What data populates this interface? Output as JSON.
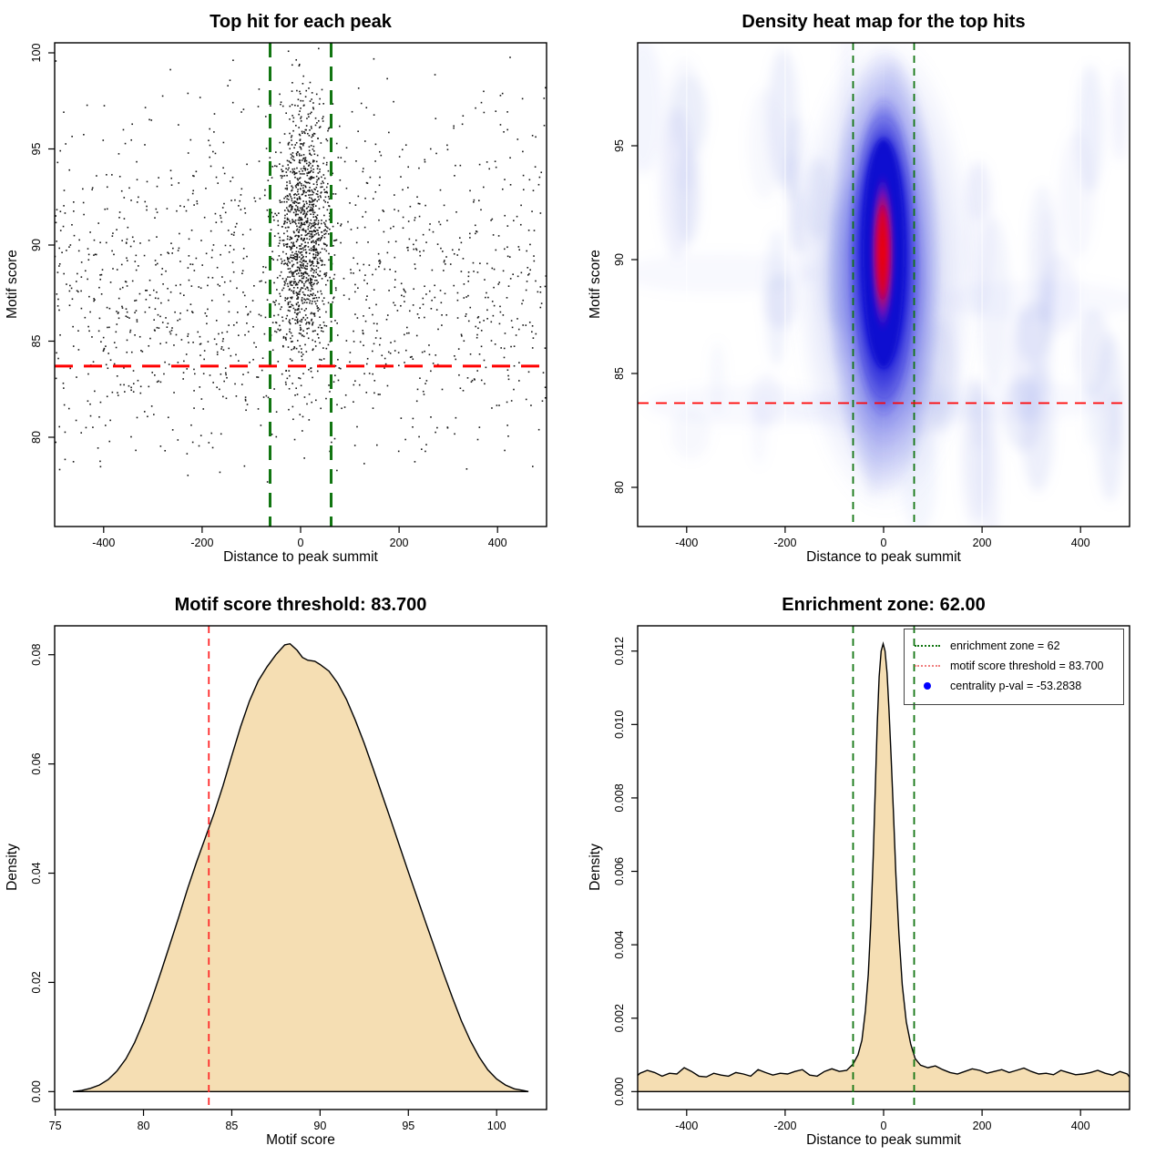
{
  "page": {
    "background": "#ffffff"
  },
  "chart_data": [
    {
      "id": "top-hit-scatter",
      "type": "scatter",
      "title": "Top hit for each peak",
      "xlabel": "Distance to peak summit",
      "ylabel": "Motif score",
      "x_ticks": [
        -400,
        -200,
        0,
        200,
        400
      ],
      "x_tick_labels": [
        "-400",
        "-200",
        "0",
        "200",
        "400"
      ],
      "y_ticks": [
        80,
        85,
        90,
        95,
        100
      ],
      "y_tick_labels": [
        "80",
        "85",
        "90",
        "95",
        "100"
      ],
      "xlim": [
        -540,
        540
      ],
      "ylim": [
        77.4,
        100.6
      ],
      "point_color": "#151515",
      "n_points_center": 1150,
      "n_points_background": 1350,
      "center_cluster": {
        "x_mean": 6,
        "x_sd": 27,
        "y_mean": 90.7,
        "y_sd": 3.3
      },
      "background_cloud": {
        "x_min": -503,
        "x_max": 503,
        "y_mean_1": 86.3,
        "y_sd_1": 3.9,
        "y_mean_2": 91.5,
        "y_sd_2": 4.2,
        "mix": 0.7
      },
      "seed": 42,
      "enrichment_vlines": {
        "x": [
          -62,
          62
        ],
        "color": "#117511",
        "style": "dashed"
      },
      "threshold_hline": {
        "y": 83.7,
        "color": "#ff0000",
        "style": "dashed"
      }
    },
    {
      "id": "density-heatmap",
      "type": "heatmap",
      "title": "Density heat map for the top hits",
      "xlabel": "Distance to peak summit",
      "ylabel": "Motif score",
      "x_ticks": [
        -400,
        -200,
        0,
        200,
        400
      ],
      "x_tick_labels": [
        "-400",
        "-200",
        "0",
        "200",
        "400"
      ],
      "y_ticks": [
        80,
        85,
        90,
        95
      ],
      "y_tick_labels": [
        "80",
        "85",
        "90",
        "95"
      ],
      "xlim": [
        -500,
        500
      ],
      "ylim": [
        78.3,
        99.5
      ],
      "color_ramp": {
        "low": "#ffffff",
        "faint": "#9aa6ea",
        "mid": "#1212d2",
        "high": "#ee0000"
      },
      "hotspot": {
        "x_center": 0,
        "y_center": 91,
        "x_spread": 60,
        "y_spread": 9
      },
      "n_texture_streaks": 60,
      "seed": 7,
      "enrichment_vlines": {
        "x": [
          -62,
          62
        ],
        "color": "#117511",
        "style": "dashed"
      },
      "threshold_hline": {
        "y": 83.7,
        "color": "#ff0000",
        "style": "dashed"
      }
    },
    {
      "id": "motif-score-density",
      "type": "density",
      "title": "Motif score threshold: 83.700",
      "xlabel": "Motif score",
      "ylabel": "Density",
      "x_ticks": [
        75,
        80,
        85,
        90,
        95,
        100
      ],
      "x_tick_labels": [
        "75",
        "80",
        "85",
        "90",
        "95",
        "100"
      ],
      "y_ticks": [
        0,
        0.02,
        0.04,
        0.06,
        0.08
      ],
      "y_tick_labels": [
        "0.00",
        "0.02",
        "0.04",
        "0.06",
        "0.08"
      ],
      "xlim": [
        76,
        101.8
      ],
      "ylim": [
        0,
        0.082
      ],
      "fill_color": "#f5deb3",
      "line_color": "#000000",
      "threshold_vline": {
        "x": 83.7,
        "color": "#ff2a2a",
        "style": "dashed"
      },
      "curve": [
        [
          76,
          0
        ],
        [
          76.5,
          0.0002
        ],
        [
          77,
          0.0006
        ],
        [
          77.5,
          0.0012
        ],
        [
          78,
          0.0022
        ],
        [
          78.5,
          0.0038
        ],
        [
          79,
          0.006
        ],
        [
          79.5,
          0.009
        ],
        [
          80,
          0.0128
        ],
        [
          80.5,
          0.0172
        ],
        [
          81,
          0.022
        ],
        [
          81.5,
          0.027
        ],
        [
          82,
          0.032
        ],
        [
          82.5,
          0.0372
        ],
        [
          83,
          0.042
        ],
        [
          83.5,
          0.0465
        ],
        [
          84,
          0.051
        ],
        [
          84.5,
          0.056
        ],
        [
          85,
          0.0615
        ],
        [
          85.5,
          0.0668
        ],
        [
          86,
          0.0715
        ],
        [
          86.5,
          0.0752
        ],
        [
          87,
          0.0778
        ],
        [
          87.5,
          0.08
        ],
        [
          88,
          0.0818
        ],
        [
          88.3,
          0.082
        ],
        [
          88.7,
          0.0808
        ],
        [
          89,
          0.0795
        ],
        [
          89.3,
          0.079
        ],
        [
          89.7,
          0.0788
        ],
        [
          90,
          0.0782
        ],
        [
          90.5,
          0.077
        ],
        [
          91,
          0.0748
        ],
        [
          91.5,
          0.0718
        ],
        [
          92,
          0.068
        ],
        [
          92.5,
          0.0638
        ],
        [
          93,
          0.0592
        ],
        [
          93.5,
          0.0545
        ],
        [
          94,
          0.0498
        ],
        [
          94.5,
          0.045
        ],
        [
          95,
          0.0402
        ],
        [
          95.5,
          0.0355
        ],
        [
          96,
          0.0308
        ],
        [
          96.5,
          0.0262
        ],
        [
          97,
          0.0216
        ],
        [
          97.5,
          0.0172
        ],
        [
          98,
          0.013
        ],
        [
          98.5,
          0.0094
        ],
        [
          99,
          0.0064
        ],
        [
          99.5,
          0.004
        ],
        [
          100,
          0.0023
        ],
        [
          100.5,
          0.0012
        ],
        [
          101,
          0.0005
        ],
        [
          101.5,
          0.0002
        ],
        [
          101.8,
          0
        ]
      ]
    },
    {
      "id": "distance-density",
      "type": "density",
      "title": "Enrichment zone: 62.00",
      "xlabel": "Distance to peak summit",
      "ylabel": "Density",
      "x_ticks": [
        -400,
        -200,
        0,
        200,
        400
      ],
      "x_tick_labels": [
        "-400",
        "-200",
        "0",
        "200",
        "400"
      ],
      "y_ticks": [
        0,
        0.002,
        0.004,
        0.006,
        0.008,
        0.01,
        0.012
      ],
      "y_tick_labels": [
        "0.000",
        "0.002",
        "0.004",
        "0.006",
        "0.008",
        "0.010",
        "0.012"
      ],
      "xlim": [
        -515,
        515
      ],
      "ylim": [
        0,
        0.0122
      ],
      "fill_color": "#f5deb3",
      "line_color": "#000000",
      "enrichment_vlines": {
        "x": [
          -62,
          62
        ],
        "color": "#117511",
        "style": "dashed"
      },
      "curve": [
        [
          -515,
          0
        ],
        [
          -510,
          0.0003
        ],
        [
          -495,
          0.0005
        ],
        [
          -480,
          0.00058
        ],
        [
          -465,
          0.00052
        ],
        [
          -450,
          0.00042
        ],
        [
          -435,
          0.0005
        ],
        [
          -420,
          0.00048
        ],
        [
          -405,
          0.00065
        ],
        [
          -390,
          0.00055
        ],
        [
          -375,
          0.00042
        ],
        [
          -360,
          0.0004
        ],
        [
          -345,
          0.0005
        ],
        [
          -330,
          0.00045
        ],
        [
          -315,
          0.00042
        ],
        [
          -300,
          0.00052
        ],
        [
          -285,
          0.00048
        ],
        [
          -270,
          0.00042
        ],
        [
          -255,
          0.0006
        ],
        [
          -240,
          0.00052
        ],
        [
          -225,
          0.00045
        ],
        [
          -210,
          0.0005
        ],
        [
          -195,
          0.00048
        ],
        [
          -180,
          0.00055
        ],
        [
          -165,
          0.0006
        ],
        [
          -150,
          0.00045
        ],
        [
          -135,
          0.00042
        ],
        [
          -120,
          0.00055
        ],
        [
          -105,
          0.00062
        ],
        [
          -90,
          0.00055
        ],
        [
          -75,
          0.00058
        ],
        [
          -62,
          0.00075
        ],
        [
          -52,
          0.001
        ],
        [
          -44,
          0.0014
        ],
        [
          -37,
          0.0022
        ],
        [
          -31,
          0.0032
        ],
        [
          -26,
          0.0046
        ],
        [
          -21,
          0.0064
        ],
        [
          -17,
          0.0082
        ],
        [
          -13,
          0.01
        ],
        [
          -9,
          0.0113
        ],
        [
          -5,
          0.012
        ],
        [
          -1,
          0.0122
        ],
        [
          3,
          0.012
        ],
        [
          7,
          0.0114
        ],
        [
          11,
          0.0104
        ],
        [
          15,
          0.0092
        ],
        [
          20,
          0.0076
        ],
        [
          25,
          0.0059
        ],
        [
          31,
          0.0043
        ],
        [
          38,
          0.0029
        ],
        [
          46,
          0.0019
        ],
        [
          55,
          0.0013
        ],
        [
          64,
          0.0009
        ],
        [
          75,
          0.00072
        ],
        [
          90,
          0.00065
        ],
        [
          105,
          0.0007
        ],
        [
          120,
          0.0006
        ],
        [
          135,
          0.00052
        ],
        [
          150,
          0.00048
        ],
        [
          165,
          0.00055
        ],
        [
          180,
          0.00062
        ],
        [
          195,
          0.00058
        ],
        [
          210,
          0.0005
        ],
        [
          225,
          0.00055
        ],
        [
          240,
          0.0006
        ],
        [
          255,
          0.00052
        ],
        [
          270,
          0.00058
        ],
        [
          285,
          0.00064
        ],
        [
          300,
          0.00055
        ],
        [
          315,
          0.00048
        ],
        [
          330,
          0.0005
        ],
        [
          345,
          0.00046
        ],
        [
          360,
          0.00058
        ],
        [
          375,
          0.00052
        ],
        [
          390,
          0.00046
        ],
        [
          405,
          0.00048
        ],
        [
          420,
          0.00052
        ],
        [
          435,
          0.00058
        ],
        [
          450,
          0.0005
        ],
        [
          465,
          0.00045
        ],
        [
          480,
          0.00055
        ],
        [
          495,
          0.00048
        ],
        [
          510,
          0.0002
        ],
        [
          515,
          0
        ]
      ],
      "legend": {
        "position": "topright",
        "items": [
          {
            "marker": "dotted-line",
            "color": "#117511",
            "label": "enrichment zone = 62"
          },
          {
            "marker": "dotted-line",
            "color": "#f08080",
            "label": "motif score threshold = 83.700"
          },
          {
            "marker": "dot",
            "color": "#0000ff",
            "label": "centrality p-val = -53.2838"
          }
        ]
      }
    }
  ]
}
